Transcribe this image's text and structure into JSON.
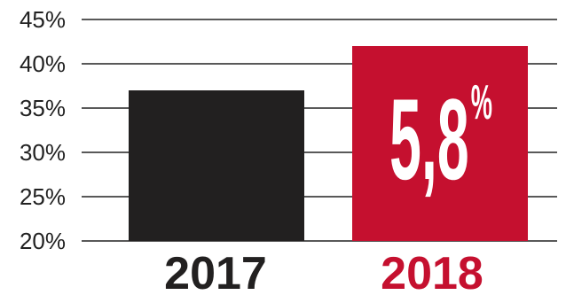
{
  "chart_data": {
    "type": "bar",
    "categories": [
      "2017",
      "2018"
    ],
    "values": [
      37,
      42
    ],
    "ylim": [
      20,
      45
    ],
    "yticks": [
      20,
      25,
      30,
      35,
      40,
      45
    ],
    "ytick_labels": [
      "20%",
      "25%",
      "30%",
      "35%",
      "40%",
      "45%"
    ],
    "grid": true,
    "colors": [
      "#222020",
      "#c5102f"
    ],
    "label_colors": [
      "#222020",
      "#c5102f"
    ],
    "annotation": {
      "category": "2018",
      "value_text": "5,8",
      "unit_text": "%"
    }
  }
}
